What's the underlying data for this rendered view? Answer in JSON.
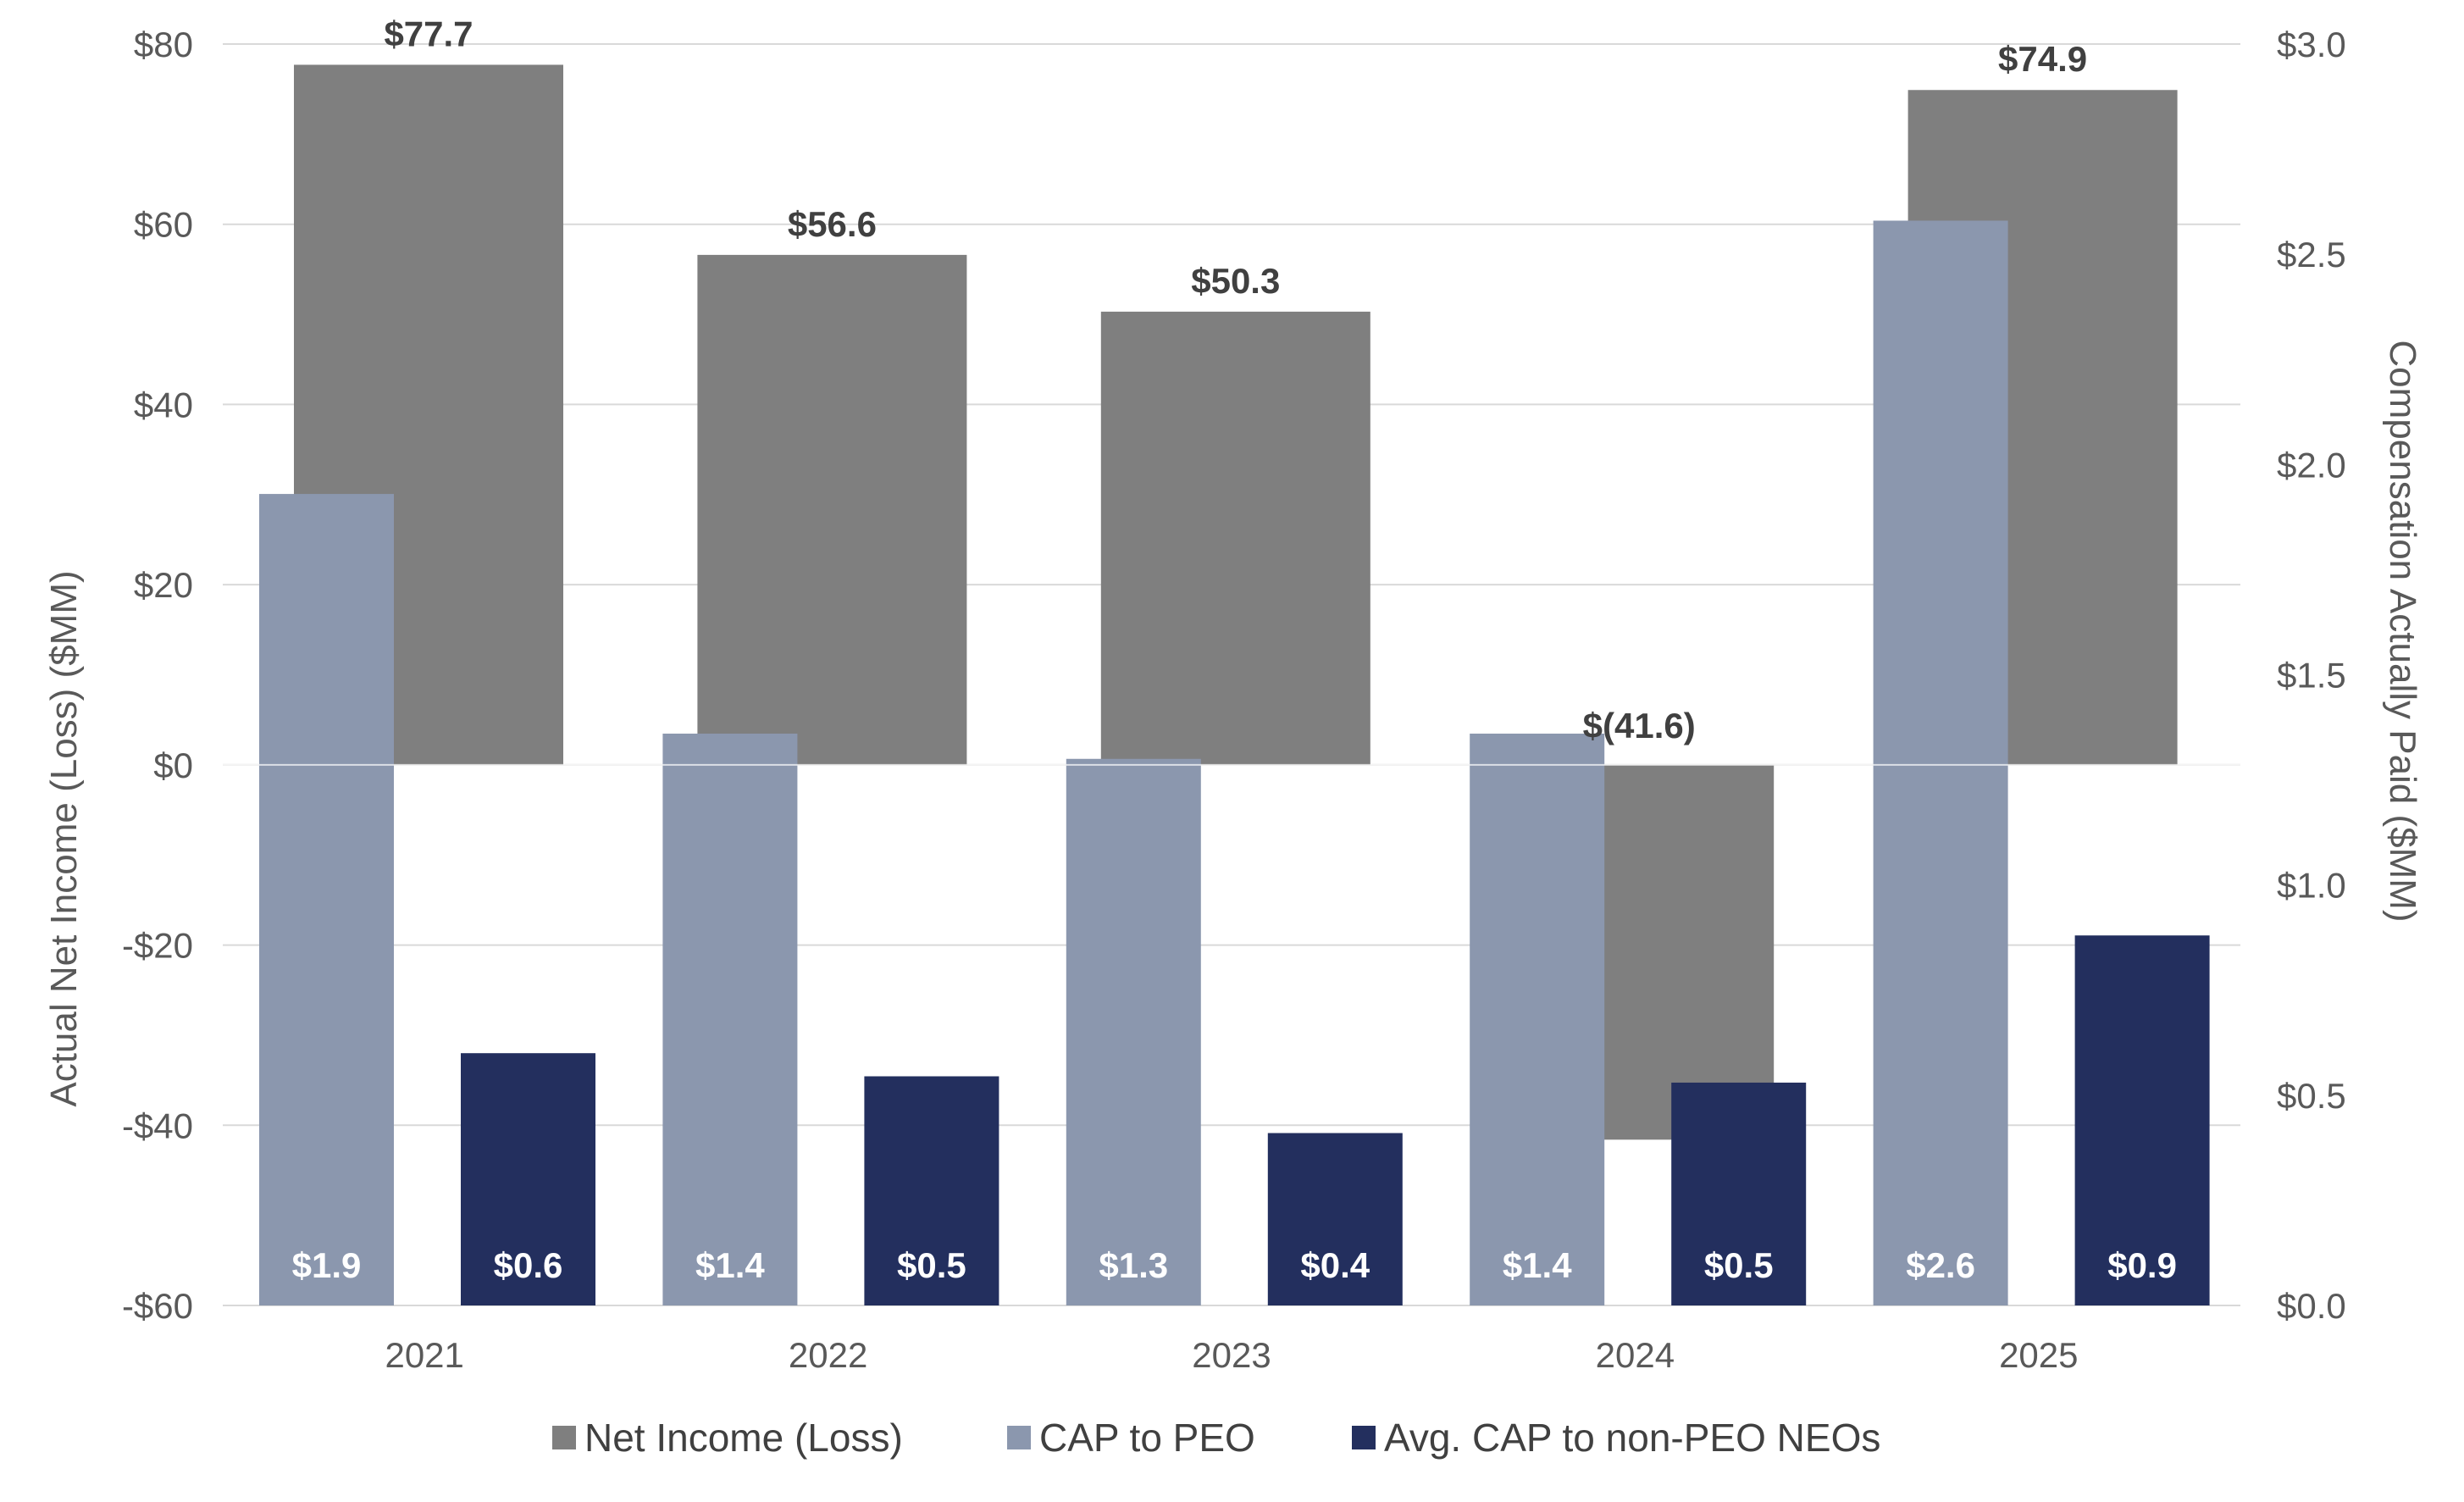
{
  "chart_data": {
    "type": "bar",
    "categories": [
      "2021",
      "2022",
      "2023",
      "2024",
      "2025"
    ],
    "series": [
      {
        "name": "Net Income (Loss)",
        "axis": "left",
        "color": "#7f7f7f",
        "values": [
          77.7,
          56.6,
          50.3,
          -41.6,
          74.9
        ],
        "labels": [
          "$77.7",
          "$56.6",
          "$50.3",
          "$(41.6)",
          "$74.9"
        ]
      },
      {
        "name": "CAP to PEO",
        "axis": "right",
        "color": "#8b97ae",
        "values": [
          1.93,
          1.36,
          1.3,
          1.36,
          2.58
        ],
        "labels": [
          "$1.9",
          "$1.4",
          "$1.3",
          "$1.4",
          "$2.6"
        ]
      },
      {
        "name": "Avg. CAP to non-PEO NEOs",
        "axis": "right",
        "color": "#232f5e",
        "values": [
          0.6,
          0.545,
          0.41,
          0.53,
          0.88
        ],
        "labels": [
          "$0.6",
          "$0.5",
          "$0.4",
          "$0.5",
          "$0.9"
        ]
      }
    ],
    "ylabel": "Actual Net Income (Loss) ($MM)",
    "ylabel_right": "Compensation Actually Paid ($MM)",
    "ylim": [
      -60,
      80
    ],
    "ylim_right": [
      0,
      3
    ],
    "yticks": [
      80,
      60,
      40,
      20,
      0,
      -20,
      -40,
      -60
    ],
    "ytick_labels": [
      "$80",
      "$60",
      "$40",
      "$20",
      "$0",
      "-$20",
      "-$40",
      "-$60"
    ],
    "yticks_right": [
      3.0,
      2.5,
      2.0,
      1.5,
      1.0,
      0.5,
      0.0
    ],
    "ytick_labels_right": [
      "$3.0",
      "$2.5",
      "$2.0",
      "$1.5",
      "$1.0",
      "$0.5",
      "$0.0"
    ],
    "grid": true,
    "legend_position": "bottom-center"
  }
}
